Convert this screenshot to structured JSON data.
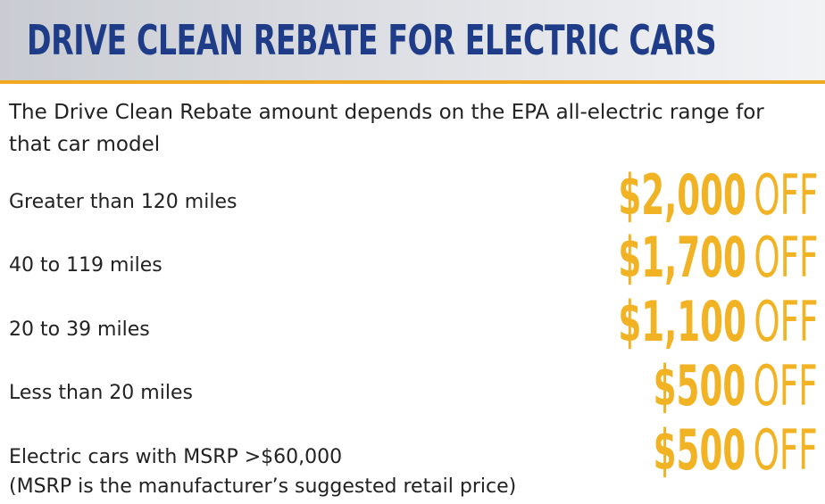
{
  "header": {
    "title": "DRIVE CLEAN REBATE FOR ELECTRIC CARS"
  },
  "intro": "The Drive Clean Rebate amount depends on the EPA all-electric range for that car model",
  "rows": [
    {
      "label": "Greater than 120 miles",
      "amount": "$2,000",
      "suffix": "OFF"
    },
    {
      "label": "40 to 119 miles",
      "amount": "$1,700",
      "suffix": "OFF"
    },
    {
      "label": "20 to 39 miles",
      "amount": "$1,100",
      "suffix": "OFF"
    },
    {
      "label": "Less than 20 miles",
      "amount": "$500",
      "suffix": "OFF"
    },
    {
      "label": "Electric cars with MSRP >$60,000",
      "note": "(MSRP is the manufacturer’s suggested retail price)",
      "amount": "$500",
      "suffix": "OFF"
    }
  ]
}
